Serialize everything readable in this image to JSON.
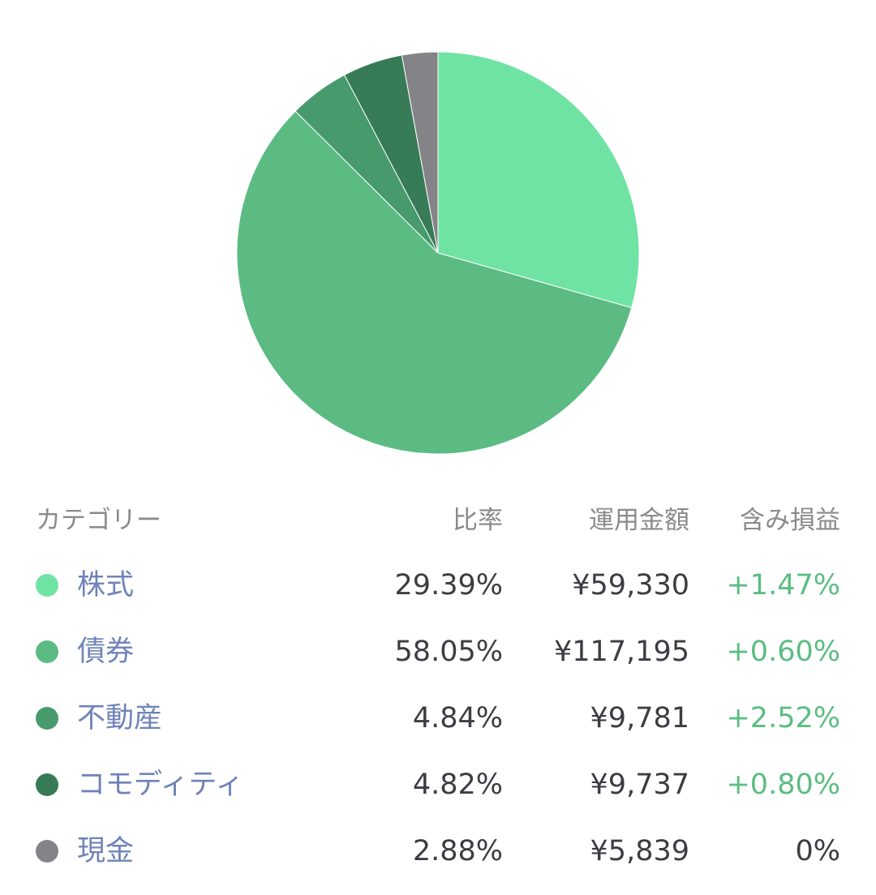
{
  "chart_data": {
    "type": "pie",
    "slices": [
      {
        "label": "株式",
        "value": 29.39,
        "color": "#6fe3a4"
      },
      {
        "label": "債券",
        "value": 58.05,
        "color": "#5bbb83"
      },
      {
        "label": "不動産",
        "value": 4.84,
        "color": "#469a6c"
      },
      {
        "label": "コモディティ",
        "value": 4.82,
        "color": "#377b57"
      },
      {
        "label": "現金",
        "value": 2.88,
        "color": "#848488"
      }
    ]
  },
  "table": {
    "headers": {
      "category": "カテゴリー",
      "ratio": "比率",
      "amount": "運用金額",
      "pl": "含み損益"
    },
    "rows": [
      {
        "name": "株式",
        "ratio": "29.39%",
        "amount": "¥59,330",
        "pl": "+1.47%",
        "pl_status": "positive",
        "color": "#6fe3a4"
      },
      {
        "name": "債券",
        "ratio": "58.05%",
        "amount": "¥117,195",
        "pl": "+0.60%",
        "pl_status": "positive",
        "color": "#5bbb83"
      },
      {
        "name": "不動産",
        "ratio": "4.84%",
        "amount": "¥9,781",
        "pl": "+2.52%",
        "pl_status": "positive",
        "color": "#469a6c"
      },
      {
        "name": "コモディティ",
        "ratio": "4.82%",
        "amount": "¥9,737",
        "pl": "+0.80%",
        "pl_status": "positive",
        "color": "#377b57"
      },
      {
        "name": "現金",
        "ratio": "2.88%",
        "amount": "¥5,839",
        "pl": "0%",
        "pl_status": "neutral",
        "color": "#848488"
      }
    ]
  }
}
